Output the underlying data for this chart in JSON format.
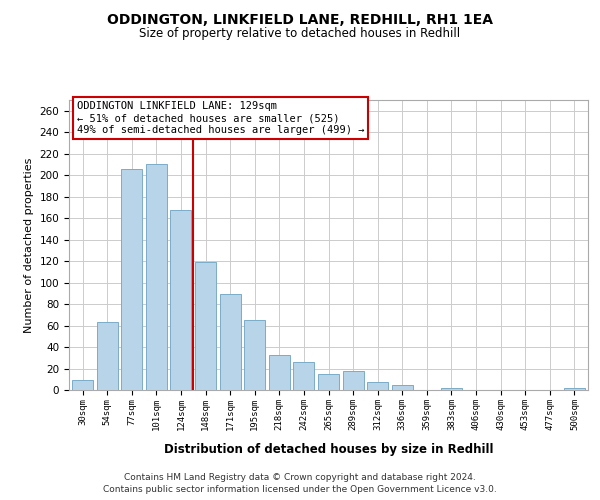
{
  "title": "ODDINGTON, LINKFIELD LANE, REDHILL, RH1 1EA",
  "subtitle": "Size of property relative to detached houses in Redhill",
  "xlabel": "Distribution of detached houses by size in Redhill",
  "ylabel": "Number of detached properties",
  "bar_labels": [
    "30sqm",
    "54sqm",
    "77sqm",
    "101sqm",
    "124sqm",
    "148sqm",
    "171sqm",
    "195sqm",
    "218sqm",
    "242sqm",
    "265sqm",
    "289sqm",
    "312sqm",
    "336sqm",
    "359sqm",
    "383sqm",
    "406sqm",
    "430sqm",
    "453sqm",
    "477sqm",
    "500sqm"
  ],
  "bar_values": [
    9,
    63,
    206,
    210,
    168,
    119,
    89,
    65,
    33,
    26,
    15,
    18,
    7,
    5,
    0,
    2,
    0,
    0,
    0,
    0,
    2
  ],
  "bar_color": "#b8d4e8",
  "bar_edge_color": "#7aacc8",
  "vline_x": 4.5,
  "vline_color": "#cc0000",
  "ylim": [
    0,
    270
  ],
  "yticks": [
    0,
    20,
    40,
    60,
    80,
    100,
    120,
    140,
    160,
    180,
    200,
    220,
    240,
    260
  ],
  "annotation_title": "ODDINGTON LINKFIELD LANE: 129sqm",
  "annotation_line1": "← 51% of detached houses are smaller (525)",
  "annotation_line2": "49% of semi-detached houses are larger (499) →",
  "annotation_box_color": "#ffffff",
  "annotation_box_edge": "#cc0000",
  "footer_line1": "Contains HM Land Registry data © Crown copyright and database right 2024.",
  "footer_line2": "Contains public sector information licensed under the Open Government Licence v3.0.",
  "background_color": "#ffffff",
  "grid_color": "#cccccc"
}
